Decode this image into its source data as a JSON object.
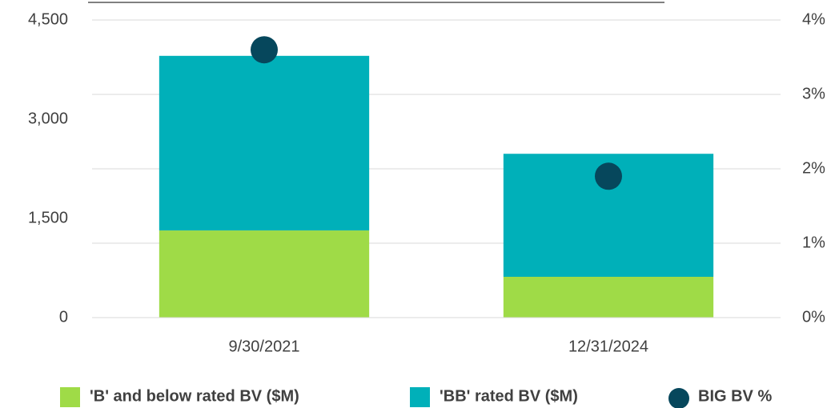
{
  "chart_data": {
    "type": "bar",
    "stacked": true,
    "categories": [
      "9/30/2021",
      "12/31/2024"
    ],
    "series": [
      {
        "name": "'B' and below rated BV ($M)",
        "color": "#9fdb47",
        "values": [
          1318,
          617
        ]
      },
      {
        "name": "'BB' rated BV ($M)",
        "color": "#00b0b9",
        "values": [
          2640,
          1860
        ]
      },
      {
        "name": "BIG BV %",
        "color": "#06475c",
        "type": "scatter",
        "axis": "y2",
        "values": [
          3.6,
          1.9
        ]
      }
    ],
    "ylim": [
      0,
      4500
    ],
    "yticks": [
      0,
      {
        "value": 1500,
        "label": "1,500"
      },
      {
        "value": 3000,
        "label": "3,000"
      },
      {
        "value": 4500,
        "label": "4,500"
      }
    ],
    "y2lim": [
      0,
      4
    ],
    "y2ticks": [
      {
        "value": 0,
        "label": "0%"
      },
      {
        "value": 1,
        "label": "1%"
      },
      {
        "value": 2,
        "label": "2%"
      },
      {
        "value": 3,
        "label": "3%"
      },
      {
        "value": 4,
        "label": "4%"
      }
    ],
    "grid": true,
    "legend": "bottom"
  }
}
